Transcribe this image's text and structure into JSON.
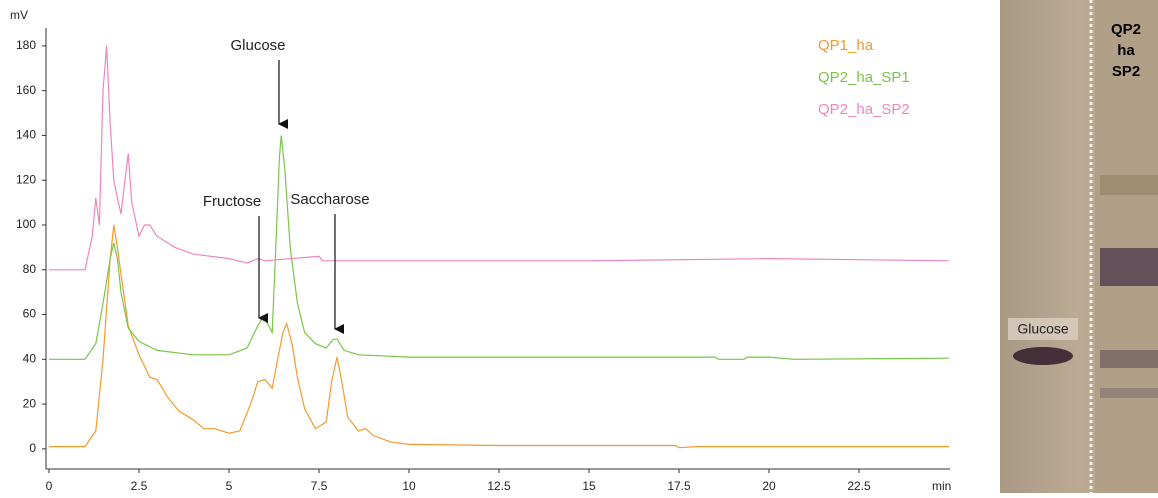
{
  "chart_data": {
    "type": "line",
    "y_label": "mV",
    "x_label": "min",
    "xlim": [
      0,
      25
    ],
    "ylim": [
      -9,
      188
    ],
    "xticks": [
      0,
      2.5,
      5,
      7.5,
      10,
      12.5,
      15,
      17.5,
      20,
      22.5
    ],
    "yticks": [
      0,
      20,
      40,
      60,
      80,
      100,
      120,
      140,
      160,
      180
    ],
    "legend": "upper right",
    "annotations": [
      "Glucose",
      "Fructose",
      "Saccharose"
    ],
    "series": [
      {
        "name": "QP1_ha",
        "color": "#f39a2e",
        "x": [
          0,
          1.0,
          1.3,
          1.5,
          1.7,
          1.8,
          1.9,
          2.0,
          2.2,
          2.5,
          2.8,
          3.0,
          3.3,
          3.6,
          4.0,
          4.3,
          4.6,
          5.0,
          5.3,
          5.6,
          5.8,
          6.0,
          6.2,
          6.35,
          6.5,
          6.6,
          6.75,
          6.9,
          7.1,
          7.4,
          7.7,
          7.85,
          8.0,
          8.1,
          8.3,
          8.6,
          8.8,
          9.0,
          9.5,
          10,
          12.5,
          17.4,
          17.5,
          18,
          25
        ],
        "values": [
          1,
          1,
          8,
          40,
          85,
          100,
          90,
          78,
          55,
          42,
          32,
          31,
          23,
          17,
          13,
          9,
          9,
          7,
          8,
          20,
          30,
          31,
          27,
          40,
          52,
          56,
          47,
          32,
          18,
          9,
          12,
          30,
          41,
          33,
          14,
          8,
          9,
          6,
          3,
          2,
          1.5,
          1.5,
          0.5,
          1,
          1
        ]
      },
      {
        "name": "QP2_ha_SP1",
        "color": "#7cc44a",
        "x": [
          0,
          1.0,
          1.3,
          1.5,
          1.7,
          1.8,
          1.9,
          2.0,
          2.2,
          2.5,
          3.0,
          4.0,
          5.0,
          5.5,
          5.8,
          5.95,
          6.1,
          6.2,
          6.3,
          6.4,
          6.45,
          6.55,
          6.7,
          6.9,
          7.1,
          7.4,
          7.7,
          7.9,
          8.0,
          8.2,
          8.6,
          10,
          15,
          18.5,
          18.6,
          19.3,
          19.4,
          20,
          20.7,
          25
        ],
        "values": [
          40,
          40,
          47,
          65,
          85,
          92,
          85,
          70,
          54,
          48,
          44,
          42,
          42,
          45,
          55,
          59,
          55,
          52,
          90,
          130,
          140,
          125,
          90,
          65,
          52,
          47,
          45,
          49,
          49,
          44,
          42,
          41,
          41,
          41,
          40,
          40,
          41,
          41,
          40,
          40.5
        ]
      },
      {
        "name": "QP2_ha_SP2",
        "color": "#ee86bd",
        "x": [
          0,
          1.0,
          1.2,
          1.3,
          1.4,
          1.5,
          1.6,
          1.7,
          1.8,
          1.9,
          2.0,
          2.2,
          2.3,
          2.5,
          2.65,
          2.8,
          3.0,
          3.5,
          4.0,
          5.0,
          5.5,
          5.8,
          6.0,
          7.5,
          7.6,
          10,
          15,
          20,
          25
        ],
        "values": [
          80,
          80,
          95,
          112,
          100,
          160,
          180,
          145,
          120,
          112,
          105,
          132,
          110,
          95,
          100,
          100,
          95,
          90,
          87,
          85,
          83,
          85,
          84,
          86,
          84,
          84,
          84,
          85,
          84
        ]
      }
    ]
  },
  "plate": {
    "header": [
      "QP2",
      "ha",
      "SP2"
    ],
    "label": "Glucose"
  }
}
